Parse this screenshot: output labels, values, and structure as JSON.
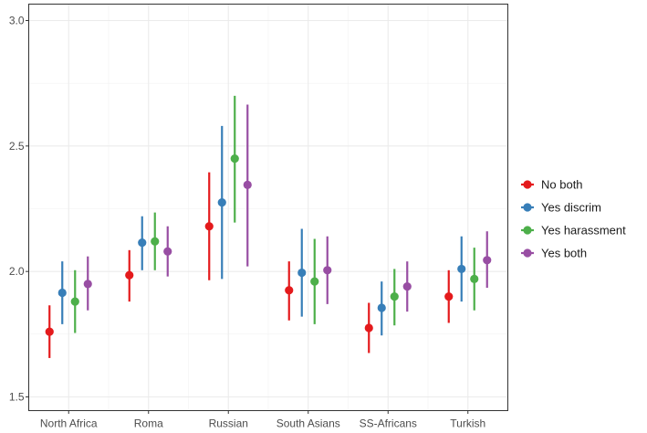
{
  "chart_data": {
    "type": "scatter",
    "title": "",
    "xlabel": "",
    "ylabel": "",
    "categories": [
      "North Africa",
      "Roma",
      "Russian",
      "South Asians",
      "SS-Africans",
      "Turkish"
    ],
    "ylim": [
      1.5,
      3.0
    ],
    "yticks": [
      1.5,
      2.0,
      2.5,
      3.0
    ],
    "ytick_labels": [
      "1.5",
      "2.0",
      "2.5",
      "3.0"
    ],
    "grid": true,
    "legend_position": "right",
    "error_bars": true,
    "series": [
      {
        "name": "No both",
        "color": "#E41A1C",
        "values": [
          1.76,
          1.985,
          2.18,
          1.925,
          1.775,
          1.9
        ],
        "lower": [
          1.655,
          1.88,
          1.965,
          1.805,
          1.675,
          1.795
        ],
        "upper": [
          1.865,
          2.085,
          2.395,
          2.04,
          1.875,
          2.005
        ]
      },
      {
        "name": "Yes discrim",
        "color": "#377EB8",
        "values": [
          1.915,
          2.115,
          2.275,
          1.995,
          1.855,
          2.01
        ],
        "lower": [
          1.79,
          2.005,
          1.97,
          1.82,
          1.745,
          1.88
        ],
        "upper": [
          2.04,
          2.22,
          2.58,
          2.17,
          1.96,
          2.14
        ]
      },
      {
        "name": "Yes harassment",
        "color": "#4DAF4A",
        "values": [
          1.88,
          2.12,
          2.45,
          1.96,
          1.9,
          1.97
        ],
        "lower": [
          1.755,
          2.005,
          2.195,
          1.79,
          1.785,
          1.845
        ],
        "upper": [
          2.005,
          2.235,
          2.7,
          2.13,
          2.01,
          2.095
        ]
      },
      {
        "name": "Yes both",
        "color": "#984EA3",
        "values": [
          1.95,
          2.08,
          2.345,
          2.005,
          1.94,
          2.045
        ],
        "lower": [
          1.845,
          1.98,
          2.02,
          1.87,
          1.84,
          1.935
        ],
        "upper": [
          2.06,
          2.18,
          2.665,
          2.14,
          2.04,
          2.16
        ]
      }
    ]
  }
}
